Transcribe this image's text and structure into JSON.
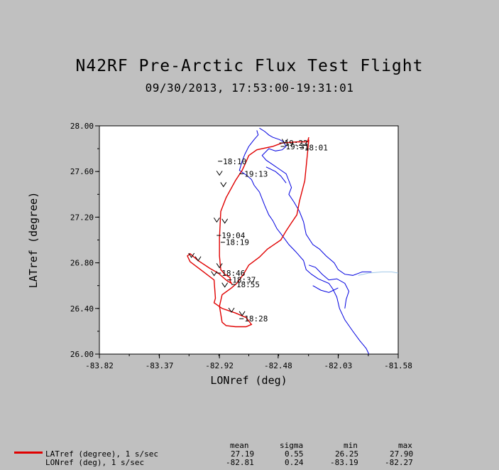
{
  "title": "N42RF Pre-Arctic Flux Test Flight",
  "subtitle": "09/30/2013, 17:53:00-19:31:01",
  "chart_data": {
    "type": "line",
    "title": "N42RF Pre-Arctic Flux Test Flight",
    "subtitle": "09/30/2013, 17:53:00-19:31:01",
    "xlabel": "LONref (deg)",
    "ylabel": "LATref (degree)",
    "xlim": [
      -83.82,
      -81.58
    ],
    "ylim": [
      26.0,
      28.0
    ],
    "x_ticks": [
      "-83.82",
      "-83.37",
      "-82.92",
      "-82.48",
      "-82.03",
      "-81.58"
    ],
    "y_ticks": [
      "26.00",
      "26.40",
      "26.80",
      "27.20",
      "27.60",
      "28.00"
    ],
    "grid": false,
    "series": [
      {
        "name": "LATref (degree), 1 s/sec",
        "color": "#e00000",
        "x": [
          -82.25,
          -82.26,
          -82.33,
          -82.45,
          -82.52,
          -82.64,
          -82.7,
          -82.73,
          -82.75,
          -82.8,
          -82.87,
          -82.91,
          -82.92,
          -82.92,
          -82.91,
          -82.88,
          -82.84,
          -82.84,
          -82.83,
          -82.86,
          -82.9,
          -82.93,
          -82.99,
          -83.08,
          -83.14,
          -83.16,
          -83.14,
          -83.05,
          -82.96,
          -82.95,
          -82.96,
          -82.9,
          -82.8,
          -82.72,
          -82.68,
          -82.72,
          -82.8,
          -82.87,
          -82.9,
          -82.92,
          -82.9,
          -82.83,
          -82.79,
          -82.74,
          -82.7,
          -82.62,
          -82.56,
          -82.46,
          -82.42,
          -82.38,
          -82.34,
          -82.32,
          -82.28,
          -82.25
        ],
        "y": [
          27.9,
          27.86,
          27.86,
          27.85,
          27.82,
          27.79,
          27.74,
          27.66,
          27.61,
          27.52,
          27.37,
          27.25,
          27.02,
          26.86,
          26.74,
          26.7,
          26.67,
          26.64,
          26.62,
          26.64,
          26.68,
          26.71,
          26.75,
          26.82,
          26.88,
          26.86,
          26.81,
          26.73,
          26.65,
          26.49,
          26.45,
          26.4,
          26.36,
          26.32,
          26.26,
          26.24,
          26.24,
          26.25,
          26.28,
          26.42,
          26.52,
          26.58,
          26.62,
          26.7,
          26.78,
          26.85,
          26.92,
          27.0,
          27.08,
          27.15,
          27.22,
          27.34,
          27.52,
          27.88
        ]
      },
      {
        "name": "LONref (deg), 1 s/sec",
        "color": "#000000",
        "x": [],
        "y": []
      }
    ],
    "annotations": [
      {
        "text": "18:10",
        "x": -82.92,
        "y": 27.69
      },
      {
        "text": "19:13",
        "x": -82.76,
        "y": 27.58
      },
      {
        "text": "19:04",
        "x": -82.93,
        "y": 27.04
      },
      {
        "text": "18:19",
        "x": -82.9,
        "y": 26.98
      },
      {
        "text": "18:46",
        "x": -82.93,
        "y": 26.71
      },
      {
        "text": "18:37",
        "x": -82.85,
        "y": 26.65
      },
      {
        "text": "18:55",
        "x": -82.82,
        "y": 26.61
      },
      {
        "text": "18:28",
        "x": -82.76,
        "y": 26.31
      },
      {
        "text": "19:22",
        "x": -82.46,
        "y": 27.85
      },
      {
        "text": "19:31",
        "x": -82.45,
        "y": 27.82
      },
      {
        "text": "18:01",
        "x": -82.31,
        "y": 27.81
      }
    ],
    "arrows": [
      {
        "x": -82.92,
        "y": 27.58,
        "dir": "down"
      },
      {
        "x": -82.89,
        "y": 27.48,
        "dir": "down"
      },
      {
        "x": -82.94,
        "y": 27.17,
        "dir": "down"
      },
      {
        "x": -82.88,
        "y": 27.16,
        "dir": "down"
      },
      {
        "x": -83.13,
        "y": 26.86,
        "dir": "down"
      },
      {
        "x": -83.08,
        "y": 26.83,
        "dir": "down"
      },
      {
        "x": -82.92,
        "y": 26.77,
        "dir": "down"
      },
      {
        "x": -82.96,
        "y": 26.7,
        "dir": "down"
      },
      {
        "x": -82.88,
        "y": 26.6,
        "dir": "down"
      },
      {
        "x": -82.83,
        "y": 26.38,
        "dir": "down"
      },
      {
        "x": -82.75,
        "y": 26.35,
        "dir": "down"
      },
      {
        "x": -82.43,
        "y": 27.86,
        "dir": "down"
      }
    ]
  },
  "coastline": {
    "color": "#0000e0",
    "paths": [
      [
        [
          -82.64,
          27.96
        ],
        [
          -82.63,
          27.92
        ],
        [
          -82.66,
          27.88
        ],
        [
          -82.7,
          27.82
        ],
        [
          -82.73,
          27.75
        ],
        [
          -82.75,
          27.69
        ],
        [
          -82.77,
          27.61
        ],
        [
          -82.72,
          27.57
        ],
        [
          -82.68,
          27.53
        ],
        [
          -82.66,
          27.48
        ],
        [
          -82.62,
          27.42
        ],
        [
          -82.6,
          27.36
        ],
        [
          -82.58,
          27.3
        ],
        [
          -82.55,
          27.22
        ],
        [
          -82.52,
          27.17
        ],
        [
          -82.49,
          27.1
        ],
        [
          -82.45,
          27.04
        ],
        [
          -82.4,
          26.96
        ],
        [
          -82.35,
          26.9
        ],
        [
          -82.29,
          26.82
        ],
        [
          -82.27,
          26.74
        ],
        [
          -82.23,
          26.7
        ],
        [
          -82.18,
          26.66
        ],
        [
          -82.1,
          26.62
        ],
        [
          -82.07,
          26.57
        ],
        [
          -82.04,
          26.5
        ],
        [
          -82.02,
          26.4
        ],
        [
          -81.98,
          26.3
        ],
        [
          -81.92,
          26.2
        ],
        [
          -81.87,
          26.12
        ],
        [
          -81.82,
          26.05
        ],
        [
          -81.8,
          26.0
        ]
      ],
      [
        [
          -82.62,
          27.98
        ],
        [
          -82.58,
          27.95
        ],
        [
          -82.55,
          27.92
        ],
        [
          -82.52,
          27.9
        ],
        [
          -82.47,
          27.88
        ],
        [
          -82.44,
          27.86
        ],
        [
          -82.42,
          27.82
        ],
        [
          -82.45,
          27.79
        ],
        [
          -82.5,
          27.78
        ],
        [
          -82.55,
          27.8
        ],
        [
          -82.6,
          27.74
        ],
        [
          -82.57,
          27.7
        ],
        [
          -82.52,
          27.66
        ],
        [
          -82.47,
          27.62
        ],
        [
          -82.42,
          27.58
        ],
        [
          -82.4,
          27.52
        ],
        [
          -82.38,
          27.46
        ],
        [
          -82.4,
          27.4
        ],
        [
          -82.36,
          27.33
        ],
        [
          -82.32,
          27.25
        ],
        [
          -82.29,
          27.16
        ],
        [
          -82.27,
          27.05
        ],
        [
          -82.22,
          26.96
        ],
        [
          -82.17,
          26.92
        ],
        [
          -82.12,
          26.86
        ],
        [
          -82.06,
          26.8
        ],
        [
          -82.03,
          26.74
        ],
        [
          -81.98,
          26.7
        ],
        [
          -81.92,
          26.69
        ],
        [
          -81.85,
          26.72
        ],
        [
          -81.78,
          26.72
        ]
      ],
      [
        [
          -82.25,
          26.78
        ],
        [
          -82.2,
          26.76
        ],
        [
          -82.15,
          26.7
        ],
        [
          -82.1,
          26.65
        ],
        [
          -82.04,
          26.66
        ],
        [
          -81.98,
          26.62
        ],
        [
          -81.95,
          26.55
        ],
        [
          -81.97,
          26.48
        ],
        [
          -81.98,
          26.4
        ]
      ],
      [
        [
          -82.22,
          26.6
        ],
        [
          -82.16,
          26.56
        ],
        [
          -82.1,
          26.54
        ],
        [
          -82.03,
          26.58
        ]
      ],
      [
        [
          -82.57,
          27.64
        ],
        [
          -82.5,
          27.6
        ],
        [
          -82.46,
          27.56
        ],
        [
          -82.42,
          27.5
        ]
      ]
    ]
  },
  "river": {
    "color": "#a0c8e8",
    "points": [
      [
        -81.88,
        26.69
      ],
      [
        -81.8,
        26.71
      ],
      [
        -81.7,
        26.72
      ],
      [
        -81.63,
        26.72
      ],
      [
        -81.58,
        26.71
      ]
    ]
  },
  "stats": {
    "headers": [
      "mean",
      "sigma",
      "min",
      "max"
    ],
    "rows": [
      {
        "label": "LATref (degree), 1 s/sec",
        "mean": "27.19",
        "sigma": "0.55",
        "min": "26.25",
        "max": "27.90"
      },
      {
        "label": "LONref (deg), 1 s/sec",
        "mean": "-82.81",
        "sigma": "0.24",
        "min": "-83.19",
        "max": "-82.27"
      }
    ]
  }
}
